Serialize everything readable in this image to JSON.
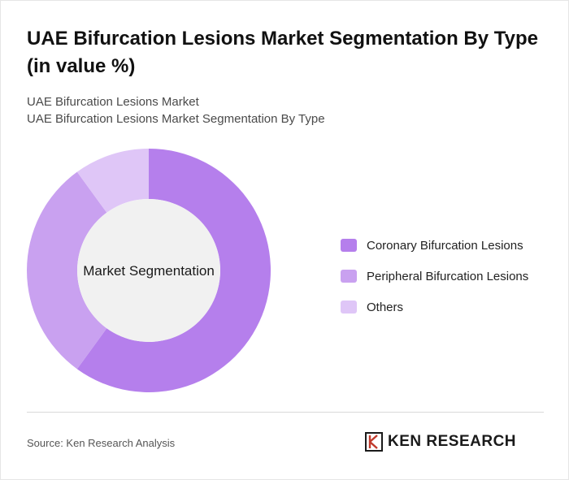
{
  "header": {
    "title": "UAE Bifurcation Lesions Market Segmentation By Type (in value %)",
    "subtitle_line1": "UAE Bifurcation Lesions Market",
    "subtitle_line2": "UAE Bifurcation Lesions Market Segmentation By Type"
  },
  "chart_data": {
    "type": "pie",
    "variant": "donut",
    "center_label": "Market Segmentation",
    "categories": [
      "Coronary Bifurcation Lesions",
      "Peripheral Bifurcation Lesions",
      "Others"
    ],
    "values": [
      60,
      30,
      10
    ],
    "unit": "%",
    "colors": [
      "#b57fec",
      "#c9a1f0",
      "#dfc6f7"
    ],
    "center_color": "#f1f1f1",
    "legend_position": "right"
  },
  "footer": {
    "source": "Source: Ken Research Analysis",
    "logo_text": "KEN RESEARCH",
    "logo_icon": "ken-research-logo-icon"
  }
}
